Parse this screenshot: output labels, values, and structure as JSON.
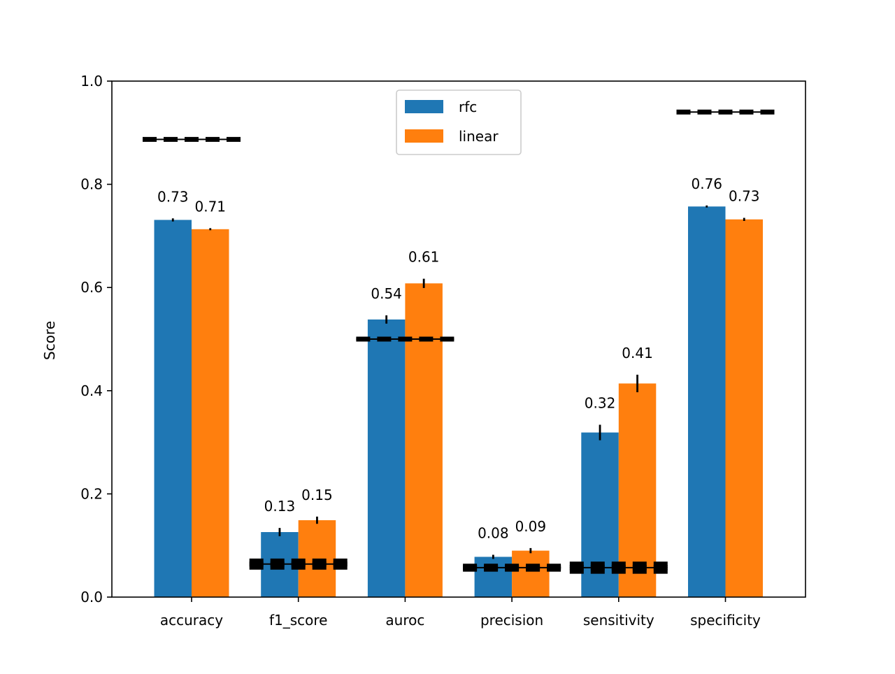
{
  "chart_data": {
    "type": "bar",
    "ylabel": "Score",
    "ylim": [
      0.0,
      1.0
    ],
    "yticks": [
      "0.0",
      "0.2",
      "0.4",
      "0.6",
      "0.8",
      "1.0"
    ],
    "categories": [
      "accuracy",
      "f1_score",
      "auroc",
      "precision",
      "sensitivity",
      "specificity"
    ],
    "series": [
      {
        "name": "rfc",
        "color": "#1f77b4",
        "values": [
          0.731,
          0.126,
          0.538,
          0.078,
          0.319,
          0.757
        ],
        "errors": [
          0.003,
          0.008,
          0.008,
          0.004,
          0.015,
          0.002
        ],
        "labels": [
          "0.73",
          "0.13",
          "0.54",
          "0.08",
          "0.32",
          "0.76"
        ]
      },
      {
        "name": "linear",
        "color": "#ff7f0e",
        "values": [
          0.713,
          0.149,
          0.608,
          0.09,
          0.414,
          0.732
        ],
        "errors": [
          0.002,
          0.007,
          0.009,
          0.005,
          0.017,
          0.003
        ],
        "labels": [
          "0.71",
          "0.15",
          "0.61",
          "0.09",
          "0.41",
          "0.73"
        ]
      }
    ],
    "baselines": [
      {
        "category": "accuracy",
        "value": 0.887,
        "band": 0.0
      },
      {
        "category": "f1_score",
        "value": 0.064,
        "band": 0.006
      },
      {
        "category": "auroc",
        "value": 0.5,
        "band": 0.0
      },
      {
        "category": "precision",
        "value": 0.057,
        "band": 0.003
      },
      {
        "category": "sensitivity",
        "value": 0.057,
        "band": 0.007
      },
      {
        "category": "specificity",
        "value": 0.94,
        "band": 0.0
      }
    ],
    "baseline_color": "#000000",
    "legend": {
      "placement": "top-center"
    },
    "grid": false
  }
}
